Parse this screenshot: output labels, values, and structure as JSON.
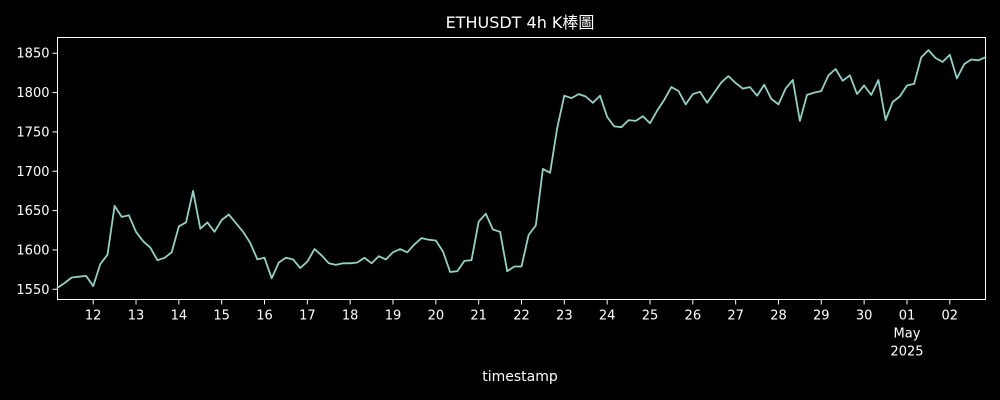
{
  "chart_data": {
    "type": "line",
    "title": "ETHUSDT 4h K棒圖",
    "xlabel": "timestamp",
    "ylabel": "",
    "xlim": [
      "2025-04-11 04:00",
      "2025-05-02 20:00"
    ],
    "ylim": [
      1537,
      1870
    ],
    "grid": false,
    "background": "#000000",
    "line_color": "#8dd3c7",
    "axis_color": "#ffffff",
    "y_ticks": [
      1550,
      1600,
      1650,
      1700,
      1750,
      1800,
      1850
    ],
    "x_ticks": [
      {
        "value": "2025-04-12",
        "label": "12"
      },
      {
        "value": "2025-04-13",
        "label": "13"
      },
      {
        "value": "2025-04-14",
        "label": "14"
      },
      {
        "value": "2025-04-15",
        "label": "15"
      },
      {
        "value": "2025-04-16",
        "label": "16"
      },
      {
        "value": "2025-04-17",
        "label": "17"
      },
      {
        "value": "2025-04-18",
        "label": "18"
      },
      {
        "value": "2025-04-19",
        "label": "19"
      },
      {
        "value": "2025-04-20",
        "label": "20"
      },
      {
        "value": "2025-04-21",
        "label": "21"
      },
      {
        "value": "2025-04-22",
        "label": "22"
      },
      {
        "value": "2025-04-23",
        "label": "23"
      },
      {
        "value": "2025-04-24",
        "label": "24"
      },
      {
        "value": "2025-04-25",
        "label": "25"
      },
      {
        "value": "2025-04-26",
        "label": "26"
      },
      {
        "value": "2025-04-27",
        "label": "27"
      },
      {
        "value": "2025-04-28",
        "label": "28"
      },
      {
        "value": "2025-04-29",
        "label": "29"
      },
      {
        "value": "2025-04-30",
        "label": "30"
      },
      {
        "value": "2025-05-01",
        "label": "01",
        "label2": "May",
        "label3": "2025"
      },
      {
        "value": "2025-05-02",
        "label": "02"
      }
    ],
    "x": [
      "2025-04-11 04:00",
      "2025-04-11 08:00",
      "2025-04-11 12:00",
      "2025-04-11 16:00",
      "2025-04-11 20:00",
      "2025-04-12 00:00",
      "2025-04-12 04:00",
      "2025-04-12 08:00",
      "2025-04-12 12:00",
      "2025-04-12 16:00",
      "2025-04-12 20:00",
      "2025-04-13 00:00",
      "2025-04-13 04:00",
      "2025-04-13 08:00",
      "2025-04-13 12:00",
      "2025-04-13 16:00",
      "2025-04-13 20:00",
      "2025-04-14 00:00",
      "2025-04-14 04:00",
      "2025-04-14 08:00",
      "2025-04-14 12:00",
      "2025-04-14 16:00",
      "2025-04-14 20:00",
      "2025-04-15 00:00",
      "2025-04-15 04:00",
      "2025-04-15 08:00",
      "2025-04-15 12:00",
      "2025-04-15 16:00",
      "2025-04-15 20:00",
      "2025-04-16 00:00",
      "2025-04-16 04:00",
      "2025-04-16 08:00",
      "2025-04-16 12:00",
      "2025-04-16 16:00",
      "2025-04-16 20:00",
      "2025-04-17 00:00",
      "2025-04-17 04:00",
      "2025-04-17 08:00",
      "2025-04-17 12:00",
      "2025-04-17 16:00",
      "2025-04-17 20:00",
      "2025-04-18 00:00",
      "2025-04-18 04:00",
      "2025-04-18 08:00",
      "2025-04-18 12:00",
      "2025-04-18 16:00",
      "2025-04-18 20:00",
      "2025-04-19 00:00",
      "2025-04-19 04:00",
      "2025-04-19 08:00",
      "2025-04-19 12:00",
      "2025-04-19 16:00",
      "2025-04-19 20:00",
      "2025-04-20 00:00",
      "2025-04-20 04:00",
      "2025-04-20 08:00",
      "2025-04-20 12:00",
      "2025-04-20 16:00",
      "2025-04-20 20:00",
      "2025-04-21 00:00",
      "2025-04-21 04:00",
      "2025-04-21 08:00",
      "2025-04-21 12:00",
      "2025-04-21 16:00",
      "2025-04-21 20:00",
      "2025-04-22 00:00",
      "2025-04-22 04:00",
      "2025-04-22 08:00",
      "2025-04-22 12:00",
      "2025-04-22 16:00",
      "2025-04-22 20:00",
      "2025-04-23 00:00",
      "2025-04-23 04:00",
      "2025-04-23 08:00",
      "2025-04-23 12:00",
      "2025-04-23 16:00",
      "2025-04-23 20:00",
      "2025-04-24 00:00",
      "2025-04-24 04:00",
      "2025-04-24 08:00",
      "2025-04-24 12:00",
      "2025-04-24 16:00",
      "2025-04-24 20:00",
      "2025-04-25 00:00",
      "2025-04-25 04:00",
      "2025-04-25 08:00",
      "2025-04-25 12:00",
      "2025-04-25 16:00",
      "2025-04-25 20:00",
      "2025-04-26 00:00",
      "2025-04-26 04:00",
      "2025-04-26 08:00",
      "2025-04-26 12:00",
      "2025-04-26 16:00",
      "2025-04-26 20:00",
      "2025-04-27 00:00",
      "2025-04-27 04:00",
      "2025-04-27 08:00",
      "2025-04-27 12:00",
      "2025-04-27 16:00",
      "2025-04-27 20:00",
      "2025-04-28 00:00",
      "2025-04-28 04:00",
      "2025-04-28 08:00",
      "2025-04-28 12:00",
      "2025-04-28 16:00",
      "2025-04-28 20:00",
      "2025-04-29 00:00",
      "2025-04-29 04:00",
      "2025-04-29 08:00",
      "2025-04-29 12:00",
      "2025-04-29 16:00",
      "2025-04-29 20:00",
      "2025-04-30 00:00",
      "2025-04-30 04:00",
      "2025-04-30 08:00",
      "2025-04-30 12:00",
      "2025-04-30 16:00",
      "2025-04-30 20:00",
      "2025-05-01 00:00",
      "2025-05-01 04:00",
      "2025-05-01 08:00",
      "2025-05-01 12:00",
      "2025-05-01 16:00",
      "2025-05-01 20:00",
      "2025-05-02 00:00",
      "2025-05-02 04:00",
      "2025-05-02 08:00",
      "2025-05-02 12:00",
      "2025-05-02 16:00",
      "2025-05-02 20:00"
    ],
    "values": [
      1552,
      1558,
      1565,
      1566,
      1567,
      1554,
      1582,
      1594,
      1656,
      1642,
      1644,
      1623,
      1611,
      1603,
      1587,
      1590,
      1597,
      1630,
      1635,
      1675,
      1627,
      1635,
      1623,
      1638,
      1645,
      1634,
      1623,
      1609,
      1588,
      1590,
      1564,
      1584,
      1590,
      1588,
      1577,
      1585,
      1601,
      1593,
      1583,
      1581,
      1583,
      1583,
      1584,
      1590,
      1583,
      1592,
      1588,
      1597,
      1601,
      1597,
      1607,
      1615,
      1613,
      1612,
      1598,
      1572,
      1573,
      1586,
      1587,
      1636,
      1646,
      1626,
      1623,
      1573,
      1579,
      1579,
      1619,
      1631,
      1703,
      1698,
      1755,
      1796,
      1793,
      1798,
      1795,
      1787,
      1796,
      1769,
      1757,
      1756,
      1765,
      1764,
      1770,
      1761,
      1777,
      1791,
      1807,
      1802,
      1785,
      1798,
      1801,
      1787,
      1800,
      1813,
      1821,
      1812,
      1805,
      1807,
      1796,
      1810,
      1792,
      1785,
      1805,
      1816,
      1764,
      1797,
      1800,
      1802,
      1822,
      1830,
      1815,
      1822,
      1798,
      1809,
      1797,
      1816,
      1765,
      1788,
      1795,
      1809,
      1811,
      1845,
      1854,
      1844,
      1839,
      1848,
      1818,
      1836,
      1842,
      1841,
      1845
    ]
  }
}
